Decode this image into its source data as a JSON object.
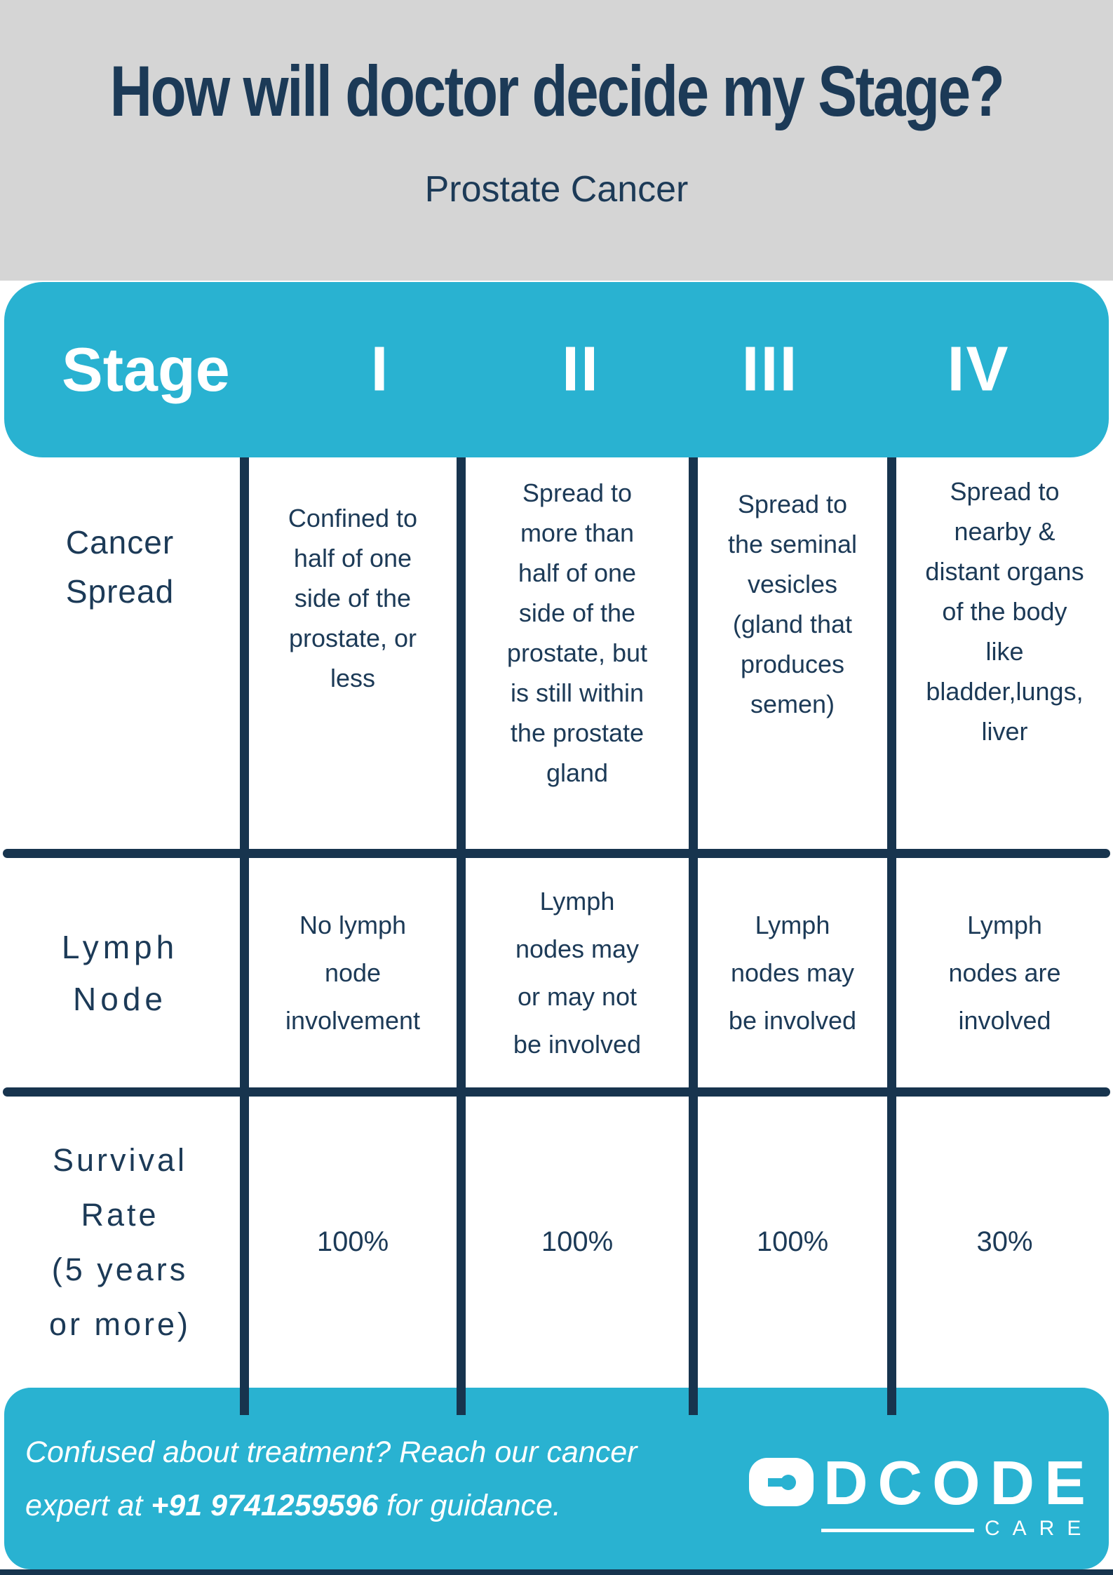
{
  "colors": {
    "navy": "#17344e",
    "teal": "#29b2d1",
    "gray": "#d5d5d5",
    "white": "#ffffff"
  },
  "header": {
    "title": "How will doctor decide my Stage?",
    "subtitle": "Prostate Cancer"
  },
  "stage_bar": {
    "label": "Stage",
    "stages": [
      "I",
      "II",
      "III",
      "IV"
    ]
  },
  "table": {
    "rows": [
      {
        "label": "Cancer\nSpread",
        "cells": [
          "Confined to\nhalf of one\nside of the\nprostate, or\nless",
          "Spread to\nmore than\nhalf of one\nside of the\nprostate, but\nis still within\nthe prostate\ngland",
          "Spread to\nthe seminal\nvesicles\n(gland that\nproduces\nsemen)",
          "Spread to\nnearby &\ndistant organs\nof the body\nlike\nbladder,lungs,\nliver"
        ]
      },
      {
        "label": "Lymph\nNode",
        "cells": [
          "No lymph\nnode\ninvolvement",
          "Lymph\nnodes may\nor may not\nbe involved",
          "Lymph\nnodes may\nbe involved",
          "Lymph\nnodes are\ninvolved"
        ]
      },
      {
        "label": "Survival\nRate\n(5 years\nor more)",
        "cells": [
          "100%",
          "100%",
          "100%",
          "30%"
        ]
      }
    ]
  },
  "footer": {
    "line1": "Confused about treatment? Reach our cancer",
    "line2_pre": "expert at ",
    "line2_bold": "+91 9741259596",
    "line2_post": " for guidance.",
    "logo": {
      "word": "DCODE",
      "sub": "CARE",
      "icon": "dcode-keyhole-icon"
    }
  }
}
